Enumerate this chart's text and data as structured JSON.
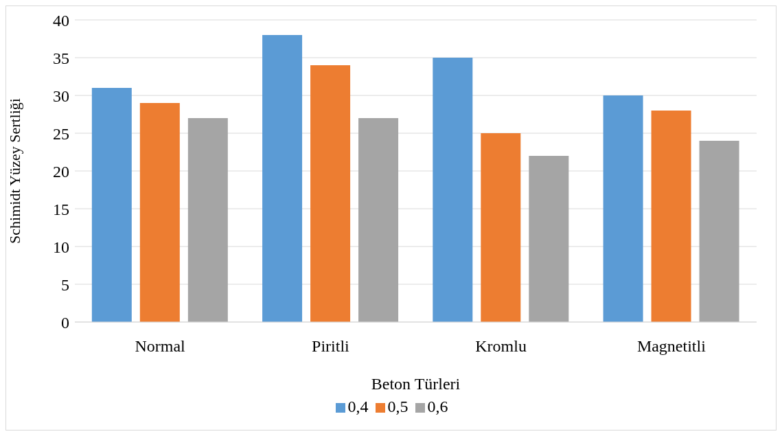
{
  "chart_data": {
    "type": "bar",
    "xlabel": "Beton Türleri",
    "ylabel": "Schimidt Yüzey Sertliği",
    "categories": [
      "Normal",
      "Piritli",
      "Kromlu",
      "Magnetitli"
    ],
    "series": [
      {
        "name": "0,4",
        "color": "#5b9bd5",
        "values": [
          31,
          38,
          35,
          30
        ]
      },
      {
        "name": "0,5",
        "color": "#ed7d31",
        "values": [
          29,
          34,
          25,
          28
        ]
      },
      {
        "name": "0,6",
        "color": "#a5a5a5",
        "values": [
          27,
          27,
          22,
          24
        ]
      }
    ],
    "ylim": [
      0,
      40
    ],
    "yticks": [
      0,
      5,
      10,
      15,
      20,
      25,
      30,
      35,
      40
    ],
    "grid": "y",
    "legend": "bottom"
  }
}
